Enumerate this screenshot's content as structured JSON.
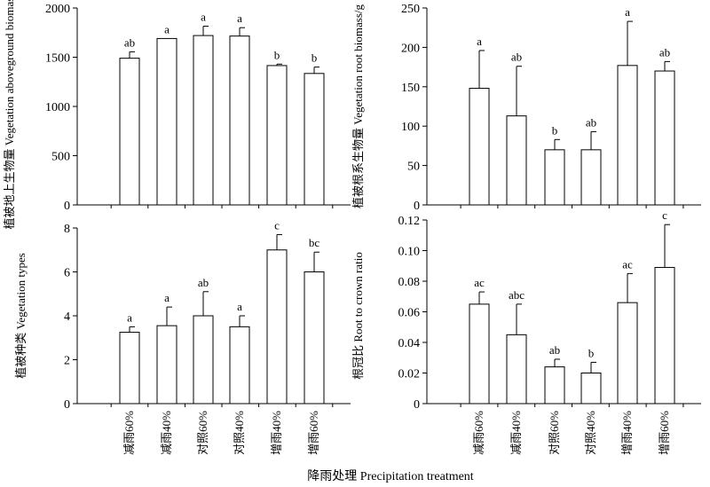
{
  "shared_xlabel": "降雨处理 Precipitation treatment",
  "chart_data": [
    {
      "type": "bar",
      "ylabel": "植被地上生物量 Vegetation aboveground biomass/g",
      "ylim": [
        0,
        2000
      ],
      "yticks": [
        0,
        500,
        1000,
        1500,
        2000
      ],
      "categories": [
        "减雨60%",
        "减雨40%",
        "对照60%",
        "对照40%",
        "增雨40%",
        "增雨60%"
      ],
      "values": [
        1490,
        1690,
        1720,
        1715,
        1415,
        1335
      ],
      "errors": [
        65,
        0,
        95,
        85,
        15,
        65
      ],
      "labels": [
        "ab",
        "a",
        "a",
        "a",
        "b",
        "b"
      ]
    },
    {
      "type": "bar",
      "ylabel": "植被根系生物量 Vegetation root biomass/g",
      "ylim": [
        0,
        250
      ],
      "yticks": [
        0,
        50,
        100,
        150,
        200,
        250
      ],
      "categories": [
        "减雨60%",
        "减雨40%",
        "对照60%",
        "对照40%",
        "增雨40%",
        "增雨60%"
      ],
      "values": [
        148,
        113,
        70,
        70,
        177,
        170
      ],
      "errors": [
        48,
        63,
        13,
        23,
        56,
        12
      ],
      "labels": [
        "a",
        "ab",
        "b",
        "ab",
        "a",
        "ab"
      ]
    },
    {
      "type": "bar",
      "ylabel": "植被种类 Vegetation types",
      "ylim": [
        0,
        8
      ],
      "yticks": [
        0,
        2,
        4,
        6,
        8
      ],
      "categories": [
        "减雨60%",
        "减雨40%",
        "对照60%",
        "对照40%",
        "增雨40%",
        "增雨60%"
      ],
      "values": [
        3.25,
        3.55,
        4.0,
        3.5,
        7.0,
        6.0
      ],
      "errors": [
        0.25,
        0.85,
        1.1,
        0.5,
        0.7,
        0.9
      ],
      "labels": [
        "a",
        "a",
        "ab",
        "a",
        "c",
        "bc"
      ]
    },
    {
      "type": "bar",
      "ylabel": "根冠比 Root to crown ratio",
      "ylim": [
        0,
        0.12
      ],
      "yticks": [
        "0",
        "0.02",
        "0.04",
        "0.06",
        "0.08",
        "0.10",
        "0.12"
      ],
      "categories": [
        "减雨60%",
        "减雨40%",
        "对照60%",
        "对照40%",
        "增雨40%",
        "增雨60%"
      ],
      "values": [
        0.065,
        0.045,
        0.024,
        0.02,
        0.066,
        0.089
      ],
      "errors": [
        0.008,
        0.02,
        0.005,
        0.007,
        0.019,
        0.028
      ],
      "labels": [
        "ac",
        "abc",
        "ab",
        "b",
        "ac",
        "c"
      ]
    }
  ]
}
